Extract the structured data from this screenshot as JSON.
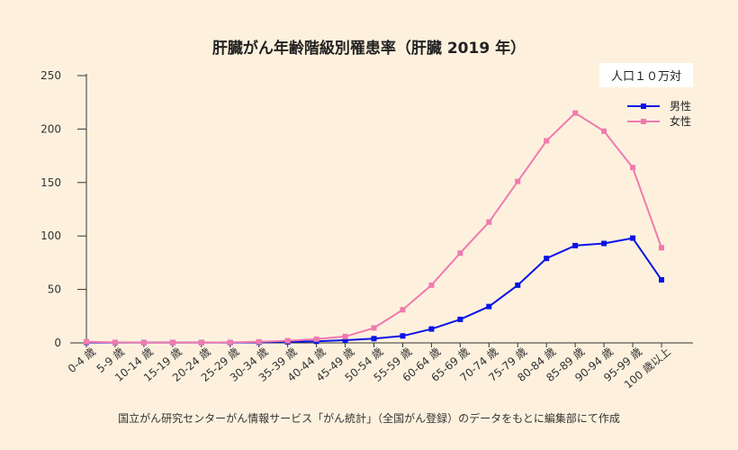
{
  "chart_data": {
    "type": "line",
    "title": "肝臓がん年齢階級別罹患率（肝臓 2019 年）",
    "unit_label": "人口１０万対",
    "categories": [
      "0-4 歳",
      "5-9 歳",
      "10-14 歳",
      "15-19 歳",
      "20-24 歳",
      "25-29 歳",
      "30-34 歳",
      "35-39 歳",
      "40-44 歳",
      "45-49 歳",
      "50-54 歳",
      "55-59 歳",
      "60-64 歳",
      "65-69 歳",
      "70-74 歳",
      "75-79 歳",
      "80-84 歳",
      "85-89 歳",
      "90-94 歳",
      "95-99 歳",
      "100 歳以上"
    ],
    "ylim": [
      0,
      250
    ],
    "yticks": [
      "0",
      "50",
      "100",
      "150",
      "200",
      "250"
    ],
    "series": [
      {
        "name": "男性",
        "color": "#0a14e6",
        "values": [
          0.5,
          0.3,
          0.3,
          0.3,
          0.3,
          0.3,
          0.5,
          1,
          1.5,
          2.5,
          4,
          6.5,
          13,
          22,
          34,
          54,
          79,
          91,
          93,
          98,
          59
        ]
      },
      {
        "name": "女性",
        "color": "#f07aae",
        "values": [
          1,
          0.5,
          0.3,
          0.3,
          0.3,
          0.5,
          1,
          2,
          3.5,
          6,
          14,
          31,
          54,
          84,
          113,
          151,
          189,
          215,
          198,
          164,
          89
        ]
      }
    ],
    "legend_position": "top-right",
    "source_note": "国立がん研究センターがん情報サービス「がん統計」（全国がん登録）のデータをもとに編集部にて作成"
  }
}
